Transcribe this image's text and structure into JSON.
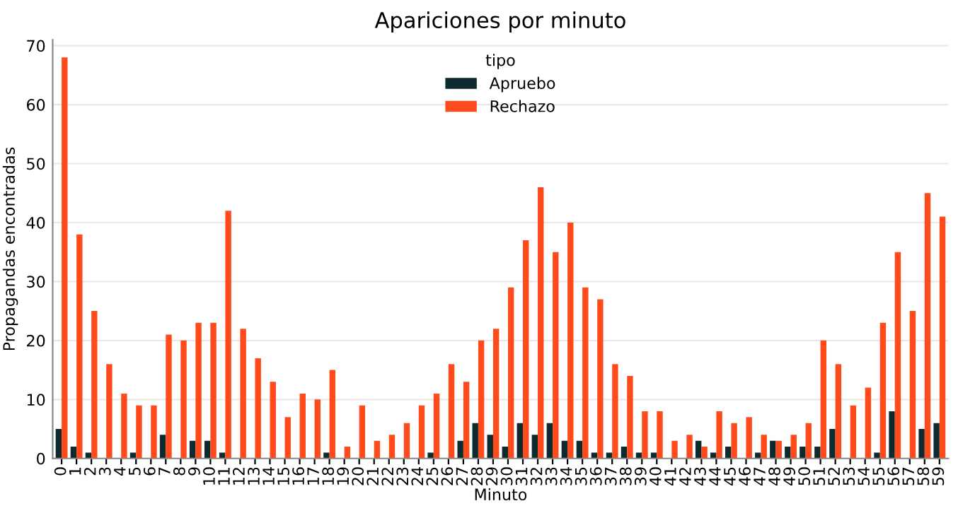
{
  "chart_data": {
    "type": "bar",
    "title": "Apariciones por minuto",
    "xlabel": "Minuto",
    "ylabel": "Propagandas encontradas",
    "legend_title": "tipo",
    "legend": "top",
    "categories": [
      "0",
      "1",
      "2",
      "3",
      "4",
      "5",
      "6",
      "7",
      "8",
      "9",
      "10",
      "11",
      "12",
      "13",
      "14",
      "15",
      "16",
      "17",
      "18",
      "19",
      "20",
      "21",
      "22",
      "23",
      "24",
      "25",
      "26",
      "27",
      "28",
      "29",
      "30",
      "31",
      "32",
      "33",
      "34",
      "35",
      "36",
      "37",
      "38",
      "39",
      "40",
      "41",
      "42",
      "43",
      "44",
      "45",
      "46",
      "47",
      "48",
      "49",
      "50",
      "51",
      "52",
      "53",
      "54",
      "55",
      "56",
      "57",
      "58",
      "59"
    ],
    "series": [
      {
        "name": "Apruebo",
        "color": "#0d2a2e",
        "values": [
          5,
          2,
          1,
          0,
          0,
          1,
          0,
          4,
          0,
          3,
          3,
          1,
          0,
          0,
          0,
          0,
          0,
          0,
          1,
          0,
          0,
          0,
          0,
          0,
          0,
          1,
          0,
          3,
          6,
          4,
          2,
          6,
          4,
          6,
          3,
          3,
          1,
          1,
          2,
          1,
          1,
          0,
          0,
          3,
          1,
          2,
          0,
          1,
          3,
          2,
          2,
          2,
          5,
          0,
          0,
          1,
          8,
          0,
          5,
          6
        ]
      },
      {
        "name": "Rechazo",
        "color": "#ff4a1c",
        "values": [
          68,
          38,
          25,
          16,
          11,
          9,
          9,
          21,
          20,
          23,
          23,
          42,
          22,
          17,
          13,
          7,
          11,
          10,
          15,
          2,
          9,
          3,
          4,
          6,
          9,
          11,
          16,
          13,
          20,
          22,
          29,
          37,
          46,
          35,
          40,
          29,
          27,
          16,
          14,
          8,
          8,
          3,
          4,
          2,
          8,
          6,
          7,
          4,
          3,
          4,
          6,
          20,
          16,
          9,
          12,
          23,
          35,
          25,
          45,
          41
        ]
      }
    ],
    "ylim": [
      0,
      71
    ],
    "yticks": [
      0,
      10,
      20,
      30,
      40,
      50,
      60,
      70
    ],
    "grid": "y"
  }
}
